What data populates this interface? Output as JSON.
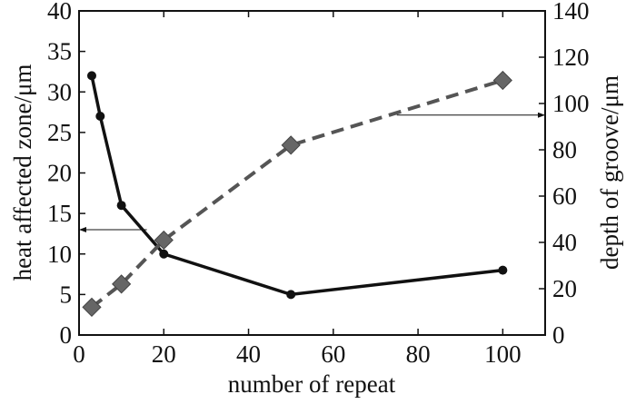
{
  "chart_data": {
    "type": "line",
    "xlabel": "number of repeat",
    "ylabel_left": "heat affected zone/μm",
    "ylabel_right": "depth of groove/μm",
    "xlim": [
      0,
      110
    ],
    "ylim_left": [
      0,
      40
    ],
    "ylim_right": [
      0,
      140
    ],
    "x_ticks": [
      "0",
      "20",
      "40",
      "60",
      "80",
      "100"
    ],
    "y_left_ticks": [
      "0",
      "5",
      "10",
      "15",
      "20",
      "25",
      "30",
      "35",
      "40"
    ],
    "y_right_ticks": [
      "0",
      "20",
      "40",
      "60",
      "80",
      "100",
      "120",
      "140"
    ],
    "grid": false,
    "series": [
      {
        "axis": "left",
        "style": "solid",
        "marker": "circle",
        "color": "#111111",
        "x": [
          3,
          5,
          10,
          20,
          50,
          100
        ],
        "y": [
          32,
          27,
          16,
          10,
          5,
          8
        ]
      },
      {
        "axis": "right",
        "style": "dashed",
        "marker": "diamond",
        "color": "#555555",
        "x": [
          3,
          10,
          20,
          50,
          100
        ],
        "y": [
          12,
          22,
          41,
          82,
          110
        ]
      }
    ],
    "annotations": [
      {
        "type": "arrow",
        "points_to": "left",
        "from_x": 16,
        "y_left": 13
      },
      {
        "type": "arrow",
        "points_to": "right",
        "from_x": 75,
        "y_right": 95
      }
    ]
  }
}
